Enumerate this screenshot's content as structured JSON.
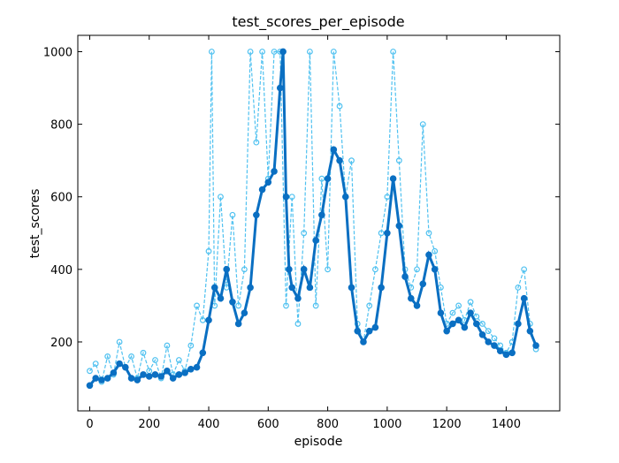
{
  "chart_data": {
    "type": "line",
    "title": "test_scores_per_episode",
    "xlabel": "episode",
    "ylabel": "test_scores",
    "xlim": [
      -40,
      1580
    ],
    "ylim": [
      10,
      1045
    ],
    "xticks": [
      0,
      200,
      400,
      600,
      800,
      1000,
      1200,
      1400
    ],
    "yticks": [
      200,
      400,
      600,
      800,
      1000
    ],
    "grid": false,
    "legend": "none",
    "colors": {
      "raw": "#4fc1f0",
      "smooth": "#0a6fc2"
    },
    "series": [
      {
        "style": "dashed-open-circles",
        "keypoints": [
          [
            0,
            120
          ],
          [
            20,
            140
          ],
          [
            40,
            90
          ],
          [
            60,
            160
          ],
          [
            80,
            110
          ],
          [
            100,
            200
          ],
          [
            120,
            130
          ],
          [
            140,
            160
          ],
          [
            160,
            100
          ],
          [
            180,
            170
          ],
          [
            200,
            120
          ],
          [
            220,
            150
          ],
          [
            240,
            100
          ],
          [
            260,
            190
          ],
          [
            280,
            110
          ],
          [
            300,
            150
          ],
          [
            320,
            120
          ],
          [
            340,
            190
          ],
          [
            360,
            300
          ],
          [
            380,
            260
          ],
          [
            400,
            450
          ],
          [
            410,
            1000
          ],
          [
            420,
            300
          ],
          [
            440,
            600
          ],
          [
            460,
            350
          ],
          [
            480,
            550
          ],
          [
            500,
            300
          ],
          [
            520,
            400
          ],
          [
            540,
            1000
          ],
          [
            560,
            750
          ],
          [
            580,
            1000
          ],
          [
            600,
            650
          ],
          [
            620,
            1000
          ],
          [
            640,
            1000
          ],
          [
            660,
            300
          ],
          [
            680,
            600
          ],
          [
            700,
            250
          ],
          [
            720,
            500
          ],
          [
            740,
            1000
          ],
          [
            760,
            300
          ],
          [
            780,
            650
          ],
          [
            800,
            400
          ],
          [
            820,
            1000
          ],
          [
            840,
            850
          ],
          [
            860,
            600
          ],
          [
            880,
            700
          ],
          [
            900,
            250
          ],
          [
            920,
            200
          ],
          [
            940,
            300
          ],
          [
            960,
            400
          ],
          [
            980,
            500
          ],
          [
            1000,
            600
          ],
          [
            1020,
            1000
          ],
          [
            1040,
            700
          ],
          [
            1060,
            400
          ],
          [
            1080,
            350
          ],
          [
            1100,
            400
          ],
          [
            1120,
            800
          ],
          [
            1140,
            500
          ],
          [
            1160,
            450
          ],
          [
            1180,
            350
          ],
          [
            1200,
            250
          ],
          [
            1220,
            280
          ],
          [
            1240,
            300
          ],
          [
            1260,
            260
          ],
          [
            1280,
            310
          ],
          [
            1300,
            270
          ],
          [
            1320,
            250
          ],
          [
            1340,
            230
          ],
          [
            1360,
            210
          ],
          [
            1380,
            190
          ],
          [
            1400,
            170
          ],
          [
            1420,
            200
          ],
          [
            1440,
            350
          ],
          [
            1460,
            400
          ],
          [
            1480,
            250
          ],
          [
            1500,
            180
          ]
        ]
      },
      {
        "style": "solid-filled-circles",
        "keypoints": [
          [
            0,
            80
          ],
          [
            20,
            100
          ],
          [
            40,
            95
          ],
          [
            60,
            100
          ],
          [
            80,
            115
          ],
          [
            100,
            140
          ],
          [
            120,
            130
          ],
          [
            140,
            100
          ],
          [
            160,
            95
          ],
          [
            180,
            110
          ],
          [
            200,
            105
          ],
          [
            220,
            110
          ],
          [
            240,
            105
          ],
          [
            260,
            120
          ],
          [
            280,
            100
          ],
          [
            300,
            110
          ],
          [
            320,
            115
          ],
          [
            340,
            125
          ],
          [
            360,
            130
          ],
          [
            380,
            170
          ],
          [
            400,
            260
          ],
          [
            420,
            350
          ],
          [
            440,
            320
          ],
          [
            460,
            400
          ],
          [
            480,
            310
          ],
          [
            500,
            250
          ],
          [
            520,
            280
          ],
          [
            540,
            350
          ],
          [
            560,
            550
          ],
          [
            580,
            620
          ],
          [
            600,
            640
          ],
          [
            620,
            670
          ],
          [
            640,
            900
          ],
          [
            650,
            1000
          ],
          [
            660,
            600
          ],
          [
            670,
            400
          ],
          [
            680,
            350
          ],
          [
            700,
            320
          ],
          [
            720,
            400
          ],
          [
            740,
            350
          ],
          [
            760,
            480
          ],
          [
            780,
            550
          ],
          [
            800,
            650
          ],
          [
            820,
            730
          ],
          [
            840,
            700
          ],
          [
            860,
            600
          ],
          [
            880,
            350
          ],
          [
            900,
            230
          ],
          [
            920,
            200
          ],
          [
            940,
            230
          ],
          [
            960,
            240
          ],
          [
            980,
            350
          ],
          [
            1000,
            500
          ],
          [
            1020,
            650
          ],
          [
            1040,
            520
          ],
          [
            1060,
            380
          ],
          [
            1080,
            320
          ],
          [
            1100,
            300
          ],
          [
            1120,
            360
          ],
          [
            1140,
            440
          ],
          [
            1160,
            400
          ],
          [
            1180,
            280
          ],
          [
            1200,
            230
          ],
          [
            1220,
            250
          ],
          [
            1240,
            260
          ],
          [
            1260,
            240
          ],
          [
            1280,
            280
          ],
          [
            1300,
            250
          ],
          [
            1320,
            220
          ],
          [
            1340,
            200
          ],
          [
            1360,
            190
          ],
          [
            1380,
            175
          ],
          [
            1400,
            165
          ],
          [
            1420,
            170
          ],
          [
            1440,
            250
          ],
          [
            1460,
            320
          ],
          [
            1480,
            230
          ],
          [
            1500,
            190
          ]
        ]
      }
    ]
  }
}
